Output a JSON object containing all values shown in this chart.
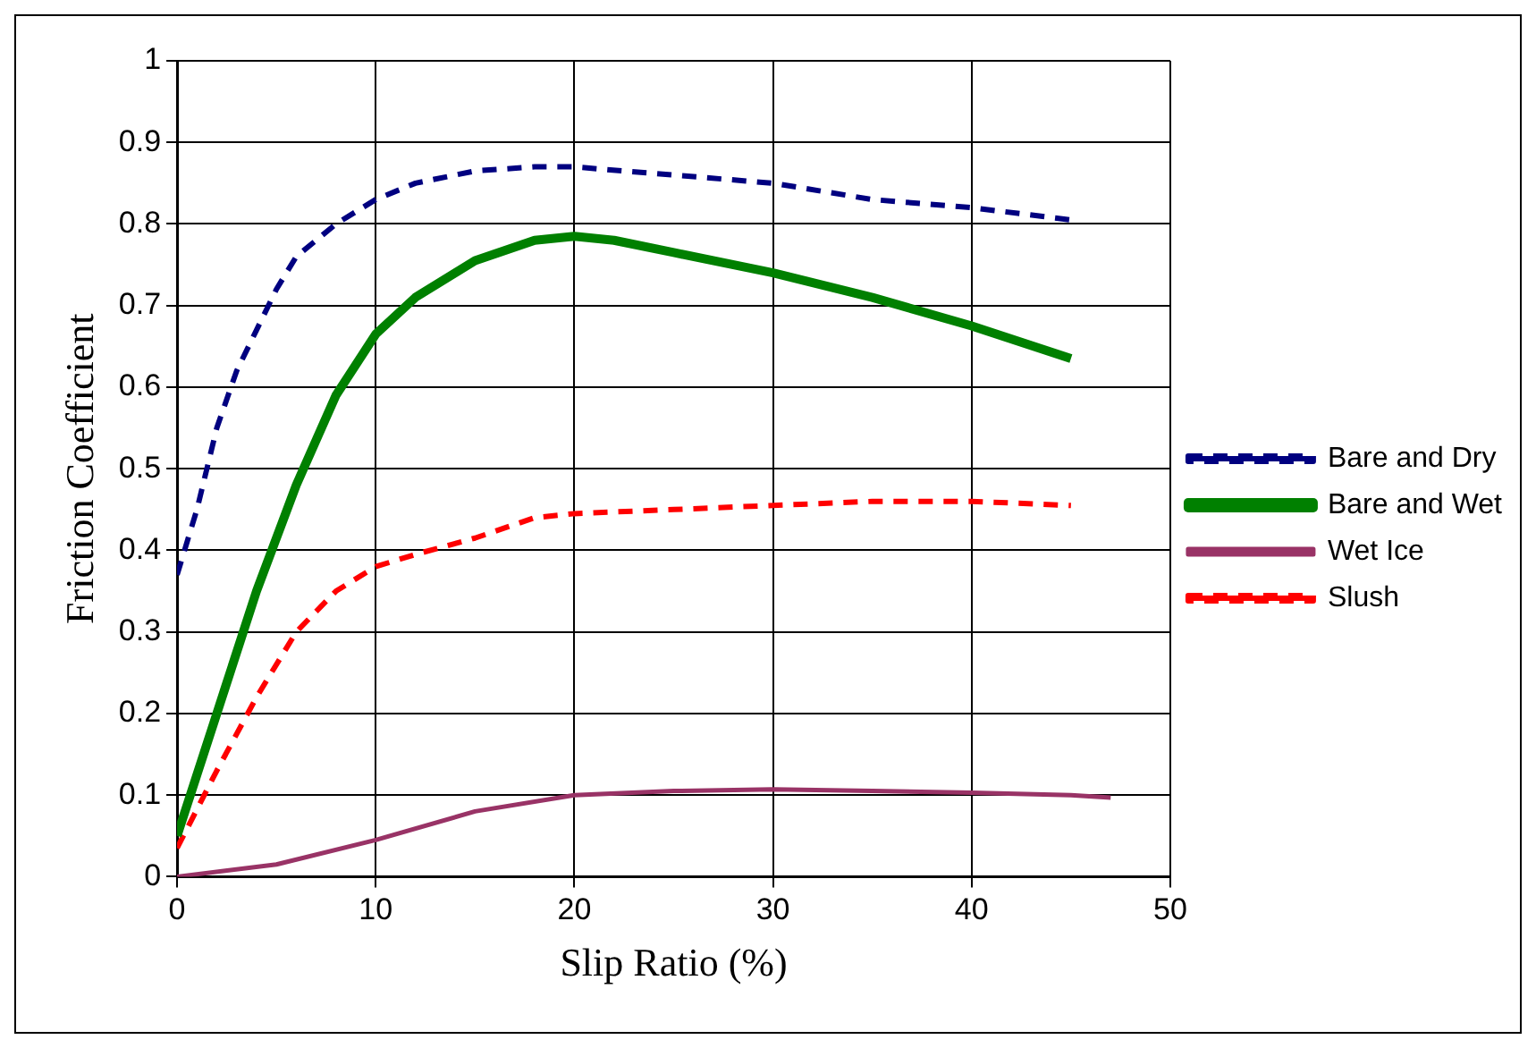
{
  "chart_data": {
    "type": "line",
    "xlabel": "Slip Ratio (%)",
    "ylabel": "Friction Coefficient",
    "xlim": [
      0,
      50
    ],
    "xticks": [
      0,
      10,
      20,
      30,
      40,
      50
    ],
    "ylim": [
      0,
      1
    ],
    "yticks": [
      0,
      0.1,
      0.2,
      0.3,
      0.4,
      0.5,
      0.6,
      0.7,
      0.8,
      0.9,
      1
    ],
    "grid": true,
    "legend": "right",
    "marker": "none",
    "series": [
      {
        "name": "Bare and Dry",
        "color": "#000080",
        "line_style": "dashed",
        "x": [
          0,
          1,
          2,
          3,
          4,
          5,
          6,
          8,
          10,
          12,
          15,
          18,
          20,
          25,
          30,
          35,
          40,
          45
        ],
        "values": [
          0.37,
          0.45,
          0.55,
          0.62,
          0.67,
          0.72,
          0.76,
          0.8,
          0.83,
          0.85,
          0.865,
          0.87,
          0.87,
          0.86,
          0.85,
          0.83,
          0.82,
          0.805
        ]
      },
      {
        "name": "Bare and Wet",
        "color": "#008000",
        "line_style": "solid",
        "x": [
          0,
          2,
          4,
          6,
          8,
          10,
          12,
          15,
          18,
          20,
          22,
          25,
          30,
          35,
          40,
          45
        ],
        "values": [
          0.05,
          0.2,
          0.35,
          0.48,
          0.59,
          0.665,
          0.71,
          0.755,
          0.78,
          0.785,
          0.78,
          0.765,
          0.74,
          0.71,
          0.675,
          0.635
        ]
      },
      {
        "name": "Wet Ice",
        "color": "#993366",
        "line_style": "solid",
        "x": [
          0,
          5,
          10,
          15,
          20,
          25,
          30,
          35,
          40,
          45,
          47
        ],
        "values": [
          0,
          0.015,
          0.045,
          0.08,
          0.1,
          0.105,
          0.107,
          0.105,
          0.103,
          0.1,
          0.097
        ]
      },
      {
        "name": "Slush",
        "color": "#ff0000",
        "line_style": "dashed",
        "x": [
          0,
          2,
          4,
          6,
          8,
          10,
          12,
          15,
          18,
          20,
          25,
          30,
          35,
          40,
          45
        ],
        "values": [
          0.035,
          0.13,
          0.22,
          0.3,
          0.35,
          0.38,
          0.395,
          0.415,
          0.44,
          0.445,
          0.45,
          0.455,
          0.46,
          0.46,
          0.455
        ]
      }
    ]
  }
}
